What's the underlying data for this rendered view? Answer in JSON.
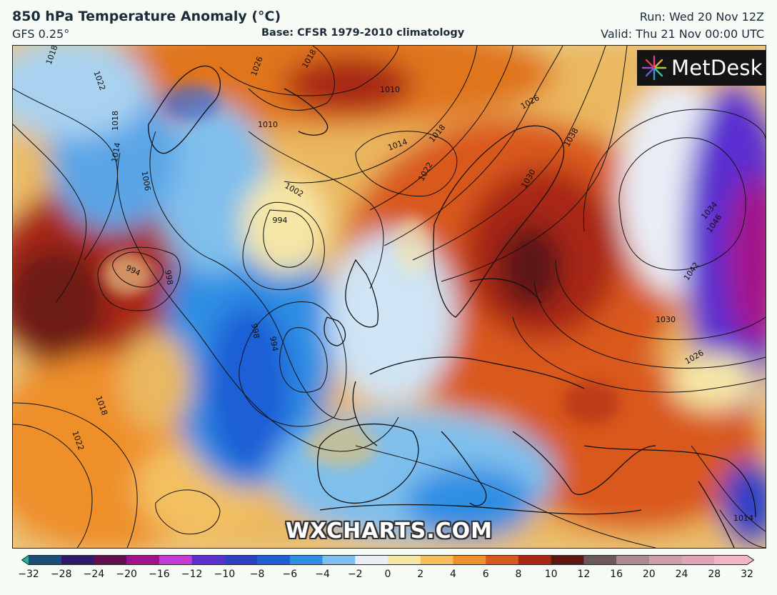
{
  "header": {
    "title": "850 hPa Temperature Anomaly (°C)",
    "model": "GFS 0.25°",
    "base": "Base: CFSR 1979-2010 climatology",
    "run": "Run: Wed 20 Nov 12Z",
    "valid": "Valid: Thu 21 Nov 00:00 UTC"
  },
  "logo": {
    "text": "MetDesk",
    "icon": "metdesk-burst-icon"
  },
  "watermark": "WXCHARTS.COM",
  "isobars": {
    "labels": [
      "1018",
      "1022",
      "1026",
      "1018",
      "1010",
      "1018",
      "1014",
      "1006",
      "1002",
      "994",
      "994",
      "998",
      "998",
      "994",
      "1010",
      "1014",
      "1018",
      "1022",
      "1026",
      "1030",
      "1038",
      "1034",
      "1046",
      "1042",
      "1030",
      "1026",
      "1018",
      "1022",
      "1014"
    ]
  },
  "colorbar": {
    "ticks": [
      "−32",
      "−28",
      "−24",
      "−20",
      "−16",
      "−12",
      "−10",
      "−8",
      "−6",
      "−4",
      "−2",
      "0",
      "2",
      "4",
      "6",
      "8",
      "10",
      "12",
      "16",
      "20",
      "24",
      "28",
      "32"
    ],
    "colors": [
      "#1fb59a",
      "#1d4e77",
      "#301a6b",
      "#64104e",
      "#a3128a",
      "#c63ad6",
      "#5a2fd0",
      "#2f3fc6",
      "#1f5fd6",
      "#2f8ee3",
      "#7fbfec",
      "#e9eef6",
      "#f6e7a6",
      "#f3c060",
      "#ee8f2a",
      "#d9581c",
      "#a82613",
      "#5c1712",
      "#6c5a5a",
      "#a98c8c",
      "#c9a0a8",
      "#e0a3b7",
      "#f3b5c6"
    ]
  }
}
